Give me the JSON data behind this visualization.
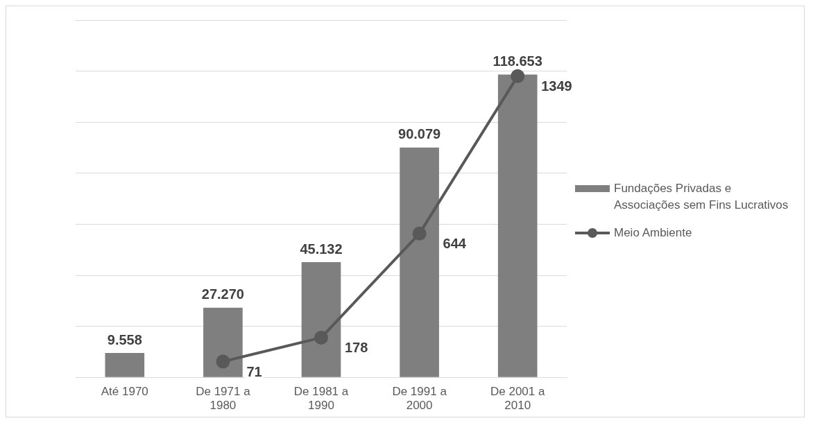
{
  "chart_data": {
    "type": "bar",
    "categories": [
      "Até 1970",
      "De 1971 a 1980",
      "De 1981 a 1990",
      "De 1991 a 2000",
      "De 2001 a 2010"
    ],
    "series": [
      {
        "name": "Fundações Privadas e Associações sem Fins Lucrativos",
        "color": "#7f7f7f",
        "values": [
          9558,
          27270,
          45132,
          90079,
          118653
        ],
        "value_labels": [
          "9.558",
          "27.270",
          "45.132",
          "90.079",
          "118.653"
        ]
      },
      {
        "name": "Meio Ambiente",
        "type": "line",
        "axis": "y2",
        "color": "#595959",
        "values": [
          null,
          71,
          178,
          644,
          1349
        ],
        "value_labels": [
          null,
          "71",
          "178",
          "644",
          "1349"
        ],
        "marker": "circle"
      }
    ],
    "ylim": [
      0,
      140000
    ],
    "yticks": [
      {
        "value": 0,
        "label": null
      },
      {
        "value": 20000,
        "label": null
      },
      {
        "value": 40000,
        "label": null
      },
      {
        "value": 60000,
        "label": null
      },
      {
        "value": 80000,
        "label": null
      },
      {
        "value": 100000,
        "label": null
      },
      {
        "value": 120000,
        "label": null
      },
      {
        "value": 140000,
        "label": null
      }
    ],
    "y2lim": [
      0,
      1600
    ],
    "tick_labels": "x",
    "grid": "y",
    "legend": "right"
  }
}
